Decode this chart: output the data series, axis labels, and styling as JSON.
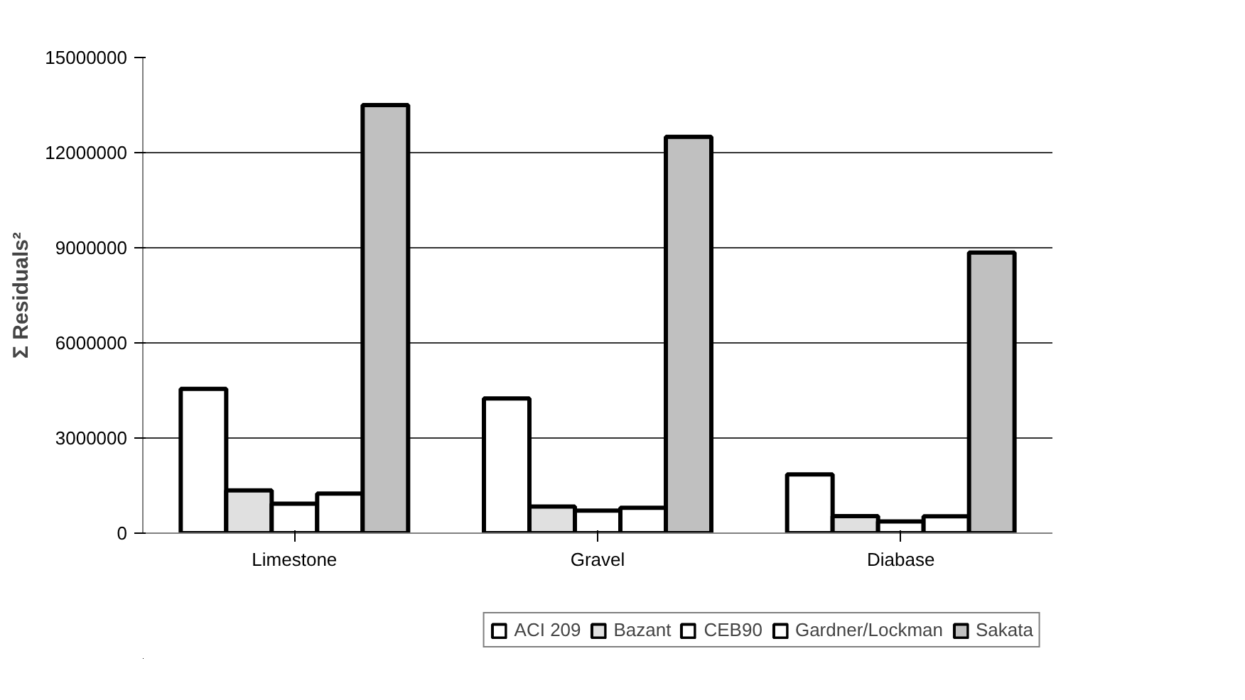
{
  "chart_data": {
    "type": "bar",
    "ylabel": "Σ Residuals²",
    "categories": [
      "Limestone",
      "Gravel",
      "Diabase"
    ],
    "series": [
      {
        "name": "ACI 209",
        "color": "#ffffff",
        "values": [
          4550000,
          4250000,
          1850000
        ]
      },
      {
        "name": "Bazant",
        "color": "#e0e0e0",
        "values": [
          1350000,
          840000,
          540000
        ]
      },
      {
        "name": "CEB90",
        "color": "#ffffff",
        "values": [
          930000,
          710000,
          370000
        ]
      },
      {
        "name": "Gardner/Lockman",
        "color": "#ffffff",
        "values": [
          1250000,
          800000,
          530000
        ]
      },
      {
        "name": "Sakata",
        "color": "#c0c0c0",
        "values": [
          13500000,
          12500000,
          8850000
        ]
      }
    ],
    "ylim": [
      0,
      15000000
    ],
    "yticks": [
      0,
      3000000,
      6000000,
      9000000,
      12000000,
      15000000
    ],
    "grid": "y",
    "legend": "bottom"
  }
}
